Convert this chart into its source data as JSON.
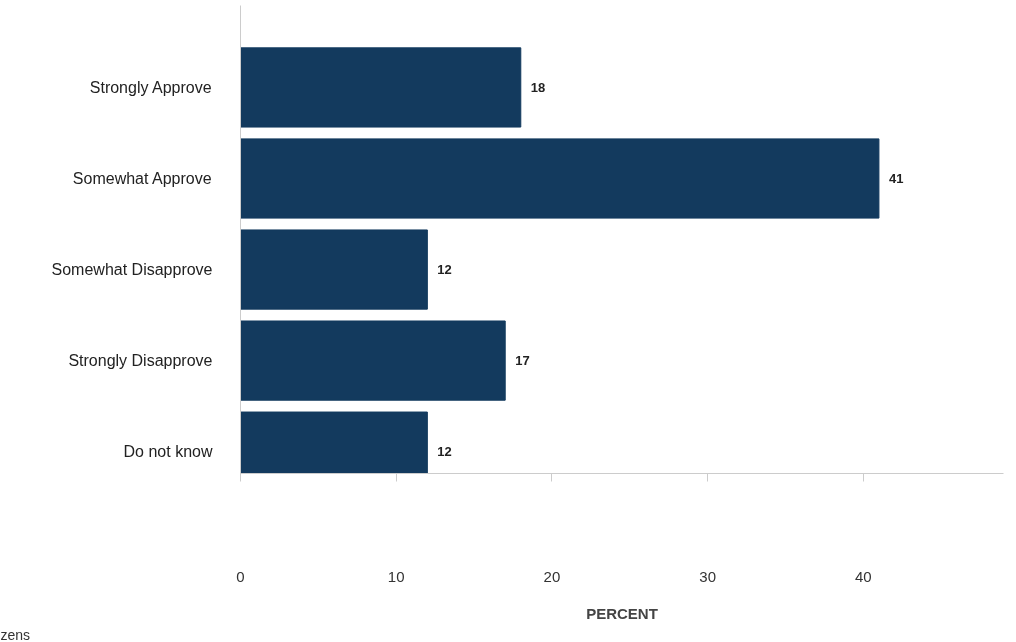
{
  "chart_data": {
    "type": "bar",
    "orientation": "horizontal",
    "xlabel": "PERCENT",
    "categories": [
      "Strongly Approve",
      "Somewhat Approve",
      "Somewhat Disapprove",
      "Strongly Disapprove",
      "Do not know"
    ],
    "values": [
      18,
      41,
      12,
      17,
      12
    ],
    "color": "#133a5e",
    "data_labels": true,
    "xlim": [
      0,
      49
    ],
    "xticks": [
      0,
      10,
      20,
      30,
      40
    ],
    "grid": false,
    "annotations": [
      "zens"
    ]
  }
}
